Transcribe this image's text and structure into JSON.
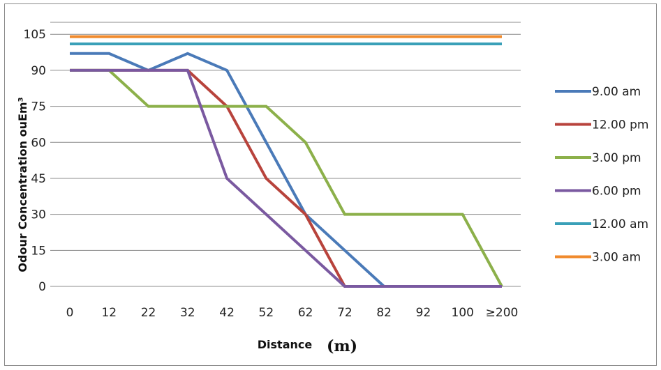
{
  "chart_data": {
    "type": "line",
    "title": "",
    "xlabel": "Distance",
    "xlabel_unit": "(m)",
    "ylabel": "Odour Concentration ouEm³",
    "categories": [
      "0",
      "12",
      "22",
      "32",
      "42",
      "52",
      "62",
      "72",
      "82",
      "92",
      "100",
      "≥200"
    ],
    "yticks": [
      0,
      15,
      30,
      45,
      60,
      75,
      90,
      105
    ],
    "ylim": [
      0,
      110
    ],
    "grid": "horizontal",
    "legend_position": "right",
    "series": [
      {
        "name": "9.00 am",
        "color": "#4a7ab8",
        "values": [
          97,
          97,
          90,
          97,
          90,
          60,
          30,
          15,
          0,
          0,
          0,
          0
        ]
      },
      {
        "name": "12.00 pm",
        "color": "#b8433c",
        "values": [
          90,
          90,
          90,
          90,
          75,
          45,
          30,
          0,
          0,
          0,
          0,
          0
        ]
      },
      {
        "name": "3.00 pm",
        "color": "#8cb04a",
        "values": [
          90,
          90,
          75,
          75,
          75,
          75,
          60,
          30,
          30,
          30,
          30,
          0
        ]
      },
      {
        "name": "6.00 pm",
        "color": "#7a59a0",
        "values": [
          90,
          90,
          90,
          90,
          45,
          30,
          15,
          0,
          0,
          0,
          0,
          0
        ]
      },
      {
        "name": "12.00 am",
        "color": "#3aa0b8",
        "values": [
          101,
          101,
          101,
          101,
          101,
          101,
          101,
          101,
          101,
          101,
          101,
          101
        ]
      },
      {
        "name": "3.00 am",
        "color": "#f08a2c",
        "values": [
          104,
          104,
          104,
          104,
          104,
          104,
          104,
          104,
          104,
          104,
          104,
          104
        ]
      }
    ]
  }
}
